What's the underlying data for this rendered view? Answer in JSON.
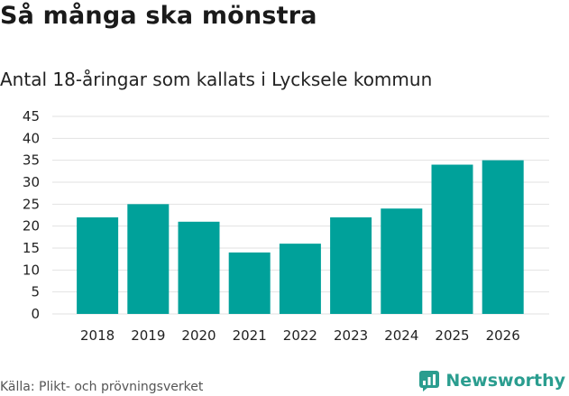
{
  "header": {
    "title": "Så många ska mönstra",
    "subtitle": "Antal 18-åringar som kallats i Lycksele kommun"
  },
  "footer": {
    "source": "Källa: Plikt- och prövningsverket",
    "brand": "Newsworthy"
  },
  "colors": {
    "bar": "#00a19a",
    "grid": "#e2e2e2",
    "brand": "#2a9d8f"
  },
  "chart_data": {
    "type": "bar",
    "title": "Så många ska mönstra",
    "subtitle": "Antal 18-åringar som kallats i Lycksele kommun",
    "xlabel": "",
    "ylabel": "",
    "categories": [
      "2018",
      "2019",
      "2020",
      "2021",
      "2022",
      "2023",
      "2024",
      "2025",
      "2026"
    ],
    "values": [
      22,
      25,
      21,
      14,
      16,
      22,
      24,
      34,
      35
    ],
    "ylim": [
      0,
      45
    ],
    "yticks": [
      0,
      5,
      10,
      15,
      20,
      25,
      30,
      35,
      40,
      45
    ],
    "grid": true,
    "legend": "none"
  }
}
